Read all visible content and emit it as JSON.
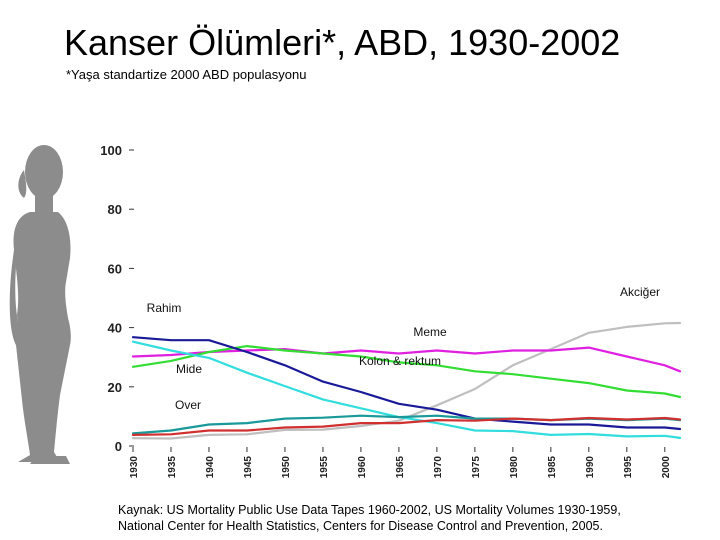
{
  "title": "Kanser Ölümleri*, ABD, 1930-2002",
  "subtitle": "*Yaşa standartize 2000 ABD populasyonu",
  "source": {
    "line1": "Kaynak: US Mortality Public Use Data Tapes 1960-2002, US Mortality Volumes 1930-1959,",
    "line2": "National Center for Health Statistics, Centers for Disease Control and Prevention, 2005."
  },
  "colors": {
    "silhouette": "#8c8c8c",
    "akciger": "#bfbfbf",
    "meme": "#e020e0",
    "kolon": "#33dd33",
    "mide": "#1a1a99",
    "rahim": "#33dddd",
    "over": "#199999",
    "red": "#d03030"
  },
  "icons": {
    "silhouette": "woman-silhouette-icon"
  },
  "chart_data": {
    "type": "line",
    "title": "",
    "xlabel": "",
    "ylabel": "",
    "xlim": [
      1930,
      2002
    ],
    "ylim": [
      0,
      100
    ],
    "y_ticks": [
      0,
      20,
      40,
      60,
      80,
      100
    ],
    "x_ticks": [
      1930,
      1935,
      1940,
      1945,
      1950,
      1955,
      1960,
      1965,
      1970,
      1975,
      1980,
      1985,
      1990,
      1995,
      2000
    ],
    "grid": false,
    "series": [
      {
        "name": "Akciğer",
        "color_key": "akciger",
        "x": [
          1930,
          1935,
          1940,
          1945,
          1950,
          1955,
          1960,
          1965,
          1970,
          1975,
          1980,
          1985,
          1990,
          1995,
          2000,
          2002
        ],
        "y": [
          2.4,
          2.8,
          3.5,
          4.2,
          5.2,
          5.8,
          6.5,
          8.8,
          13.5,
          19.5,
          27,
          33,
          38,
          40.5,
          41.2,
          41.8
        ]
      },
      {
        "name": "Meme",
        "color_key": "meme",
        "x": [
          1930,
          1935,
          1940,
          1945,
          1950,
          1955,
          1960,
          1965,
          1970,
          1975,
          1980,
          1985,
          1990,
          1995,
          2000,
          2002
        ],
        "y": [
          30,
          31,
          31.5,
          32.5,
          32.5,
          31.5,
          32,
          31.5,
          32,
          31.5,
          32,
          32.5,
          33,
          30.5,
          27,
          25.5
        ]
      },
      {
        "name": "Kolon & rektum",
        "color_key": "kolon",
        "x": [
          1930,
          1935,
          1940,
          1945,
          1950,
          1955,
          1960,
          1965,
          1970,
          1975,
          1980,
          1985,
          1990,
          1995,
          2000,
          2002
        ],
        "y": [
          26.5,
          29,
          31.5,
          34,
          32,
          31.5,
          30,
          28.5,
          27,
          25.5,
          24,
          23,
          21,
          19,
          17.5,
          16.8
        ]
      },
      {
        "name": "Mide",
        "color_key": "mide",
        "x": [
          1930,
          1935,
          1940,
          1945,
          1950,
          1955,
          1960,
          1965,
          1970,
          1975,
          1980,
          1985,
          1990,
          1995,
          2000,
          2002
        ],
        "y": [
          36.5,
          36,
          35.5,
          32,
          27,
          22,
          18,
          14.5,
          12,
          9.5,
          8,
          7.5,
          7,
          6.5,
          6,
          6
        ]
      },
      {
        "name": "Rahim",
        "color_key": "rahim",
        "x": [
          1930,
          1935,
          1940,
          1945,
          1950,
          1955,
          1960,
          1965,
          1970,
          1975,
          1980,
          1985,
          1990,
          1995,
          2000,
          2002
        ],
        "y": [
          35,
          32.5,
          29.5,
          25,
          20,
          16,
          12.5,
          10,
          7.5,
          5.5,
          4.8,
          4,
          3.8,
          3.5,
          3.2,
          3
        ]
      },
      {
        "name": "Over",
        "color_key": "over",
        "x": [
          1930,
          1935,
          1940,
          1945,
          1950,
          1955,
          1960,
          1965,
          1970,
          1975,
          1980,
          1985,
          1990,
          1995,
          2000,
          2002
        ],
        "y": [
          4,
          5.5,
          7,
          8,
          9,
          9.8,
          10,
          10,
          10,
          9.5,
          9,
          9,
          9,
          9,
          9,
          9
        ]
      },
      {
        "name": "",
        "color_key": "red",
        "x": [
          1930,
          1935,
          1940,
          1945,
          1950,
          1955,
          1960,
          1965,
          1970,
          1975,
          1980,
          1985,
          1990,
          1995,
          2000,
          2002
        ],
        "y": [
          3.5,
          4.2,
          5,
          5.5,
          6,
          6.8,
          7.5,
          8,
          8.5,
          8.8,
          9,
          9,
          9.2,
          9.2,
          9.2,
          9.2
        ]
      }
    ],
    "labels": [
      {
        "text": "Akciğer",
        "series": "Akciğer"
      },
      {
        "text": "Meme",
        "series": "Meme"
      },
      {
        "text": "Kolon & rektum",
        "series": "Kolon & rektum"
      },
      {
        "text": "Mide",
        "series": "Mide"
      },
      {
        "text": "Rahim",
        "series": "Rahim"
      },
      {
        "text": "Over",
        "series": "Over"
      }
    ]
  }
}
